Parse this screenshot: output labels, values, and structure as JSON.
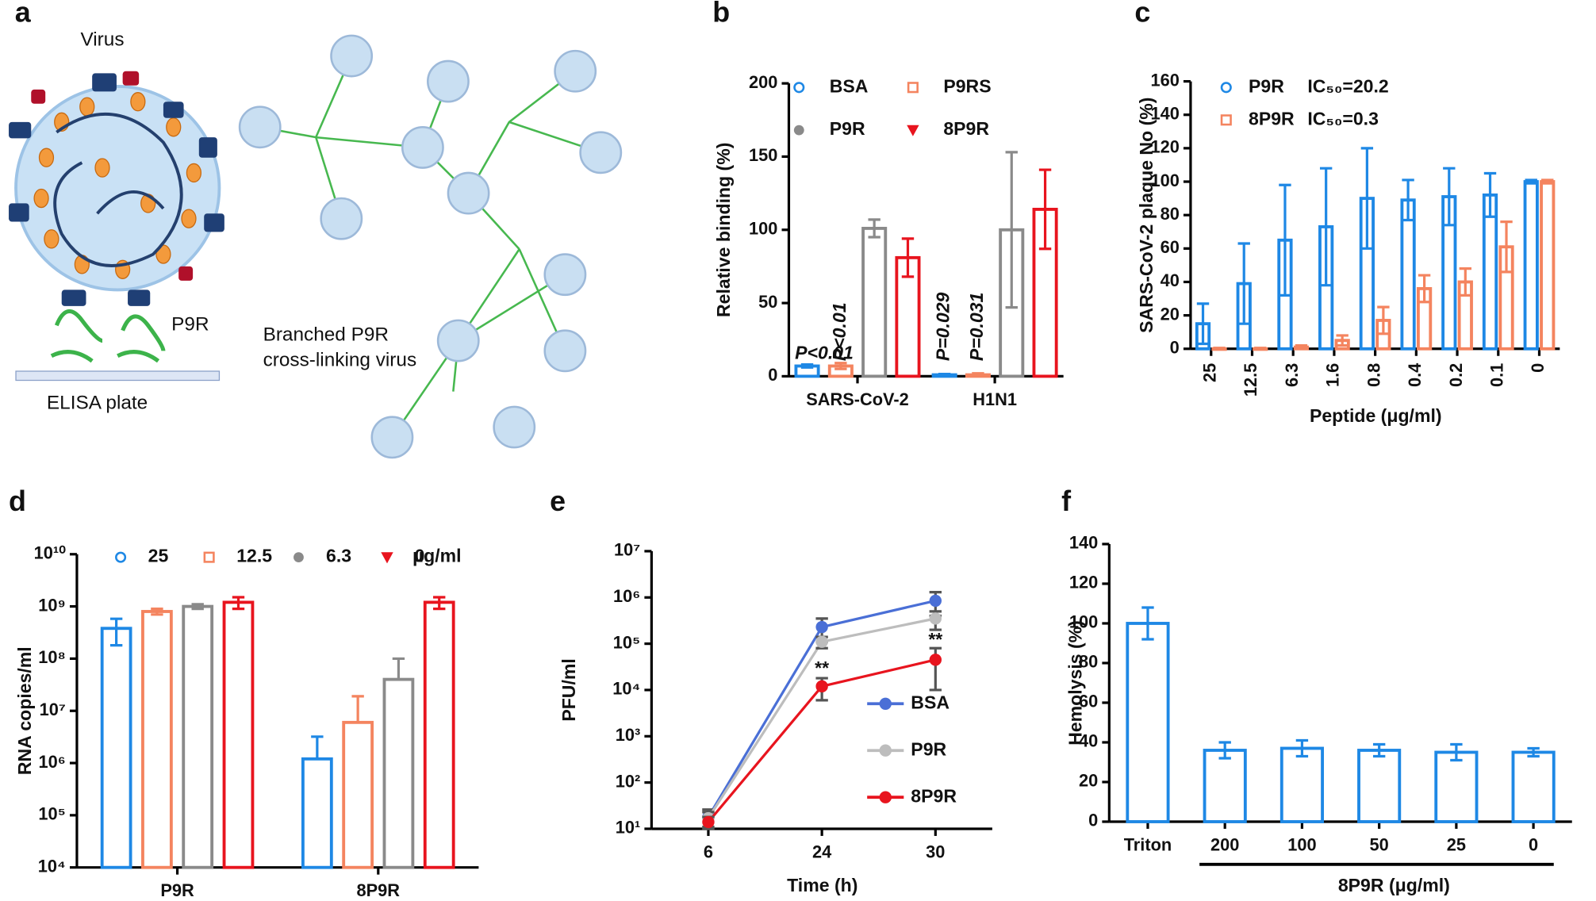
{
  "diagram": {
    "label": "a",
    "virus": "Virus",
    "peptide": "P9R",
    "plate": "ELISA plate",
    "branched": [
      "Branched P9R",
      "cross-linking virus"
    ]
  },
  "chart_data": [
    {
      "type": "bar",
      "label": "b",
      "ylabel": "Relative binding (%)",
      "categories": [
        "SARS-CoV-2",
        "H1N1"
      ],
      "series": [
        {
          "name": "BSA",
          "color": "#1e88e5",
          "marker": "circle-open",
          "values": [
            7,
            1
          ],
          "errors": [
            1,
            0.5
          ]
        },
        {
          "name": "P9RS",
          "color": "#f4845f",
          "marker": "square-open",
          "values": [
            7,
            1
          ],
          "errors": [
            2,
            1
          ]
        },
        {
          "name": "P9R",
          "color": "#8a8a8a",
          "marker": "circle",
          "values": [
            101,
            100
          ],
          "errors": [
            6,
            53
          ]
        },
        {
          "name": "8P9R",
          "color": "#e8141e",
          "marker": "triangle",
          "values": [
            81,
            114
          ],
          "errors": [
            13,
            27
          ]
        }
      ],
      "ylim": [
        0,
        200
      ],
      "yticks": [
        0,
        50,
        100,
        150,
        200
      ],
      "annotations": [
        "P<0.01",
        "P<0.01",
        "P=0.029",
        "P=0.031"
      ]
    },
    {
      "type": "bar",
      "label": "c",
      "ylabel": "SARS-CoV-2 plaque No (%)",
      "xlabel": "Peptide (μg/ml)",
      "categories": [
        "25",
        "12.5",
        "6.3",
        "1.6",
        "0.8",
        "0.4",
        "0.2",
        "0.1",
        "0"
      ],
      "series": [
        {
          "name": "P9R",
          "color": "#1e88e5",
          "marker": "circle-open",
          "values": [
            15,
            39,
            65,
            73,
            90,
            89,
            91,
            92,
            100
          ],
          "errors": [
            12,
            24,
            33,
            35,
            30,
            12,
            17,
            13,
            1
          ]
        },
        {
          "name": "8P9R",
          "color": "#f4845f",
          "marker": "square-open",
          "values": [
            0,
            0,
            1,
            5,
            17,
            36,
            40,
            61,
            100
          ],
          "errors": [
            0.5,
            0.5,
            1,
            3,
            8,
            8,
            8,
            15,
            1
          ]
        }
      ],
      "legend_notes": [
        "IC₅₀=20.2",
        "IC₅₀=0.3"
      ],
      "ylim": [
        0,
        160
      ],
      "yticks": [
        0,
        20,
        40,
        60,
        80,
        100,
        120,
        140,
        160
      ]
    },
    {
      "type": "bar",
      "label": "d",
      "ylabel": "RNA copies/ml",
      "categories": [
        "P9R",
        "8P9R"
      ],
      "log": true,
      "series": [
        {
          "name": "25",
          "color": "#1e88e5",
          "marker": "circle-open",
          "values": [
            380000000,
            1200000
          ],
          "errors": [
            200000000,
            2000000
          ]
        },
        {
          "name": "12.5",
          "color": "#f4845f",
          "marker": "square-open",
          "values": [
            800000000,
            6000000
          ],
          "errors": [
            100000000,
            13000000
          ]
        },
        {
          "name": "6.3",
          "color": "#8a8a8a",
          "marker": "circle",
          "values": [
            1000000000,
            40000000
          ],
          "errors": [
            100000000,
            60000000
          ]
        },
        {
          "name": "0",
          "color": "#e8141e",
          "marker": "triangle",
          "values": [
            1200000000,
            1200000000
          ],
          "errors": [
            300000000,
            300000000
          ]
        }
      ],
      "legend_unit": "μg/ml",
      "ylim": [
        10000,
        10000000000
      ],
      "yticks": [
        {
          "value": 10000,
          "label": "10⁴"
        },
        {
          "value": 100000,
          "label": "10⁵"
        },
        {
          "value": 1000000,
          "label": "10⁶"
        },
        {
          "value": 10000000,
          "label": "10⁷"
        },
        {
          "value": 100000000,
          "label": "10⁸"
        },
        {
          "value": 1000000000,
          "label": "10⁹"
        },
        {
          "value": 10000000000,
          "label": "10¹⁰"
        }
      ]
    },
    {
      "type": "line",
      "label": "e",
      "ylabel": "PFU/ml",
      "xlabel": "Time (h)",
      "categories": [
        "6",
        "24",
        "30"
      ],
      "log": true,
      "series": [
        {
          "name": "BSA",
          "color": "#4a6fd6",
          "values": [
            18,
            230000,
            850000
          ],
          "errors": [
            8,
            120000,
            450000
          ]
        },
        {
          "name": "P9R",
          "color": "#bdbdbd",
          "values": [
            17,
            110000,
            350000
          ],
          "errors": [
            6,
            30000,
            150000
          ]
        },
        {
          "name": "8P9R",
          "color": "#e8141e",
          "values": [
            14,
            12000,
            45000
          ],
          "errors": [
            4,
            6000,
            35000
          ]
        }
      ],
      "annotations": [
        "**",
        "**"
      ],
      "ylim": [
        10,
        10000000
      ],
      "yticks": [
        {
          "value": 10,
          "label": "10¹"
        },
        {
          "value": 100,
          "label": "10²"
        },
        {
          "value": 1000,
          "label": "10³"
        },
        {
          "value": 10000,
          "label": "10⁴"
        },
        {
          "value": 100000,
          "label": "10⁵"
        },
        {
          "value": 1000000,
          "label": "10⁶"
        },
        {
          "value": 10000000,
          "label": "10⁷"
        }
      ]
    },
    {
      "type": "bar",
      "label": "f",
      "ylabel": "Hemolysis (%)",
      "xlabel": "8P9R (μg/ml)",
      "categories": [
        "Triton",
        "200",
        "100",
        "50",
        "25",
        "0"
      ],
      "series": [
        {
          "name": "Hemolysis",
          "color": "#1e88e5",
          "values": [
            100,
            36,
            37,
            36,
            35,
            35
          ],
          "errors": [
            8,
            4,
            4,
            3,
            4,
            2
          ]
        }
      ],
      "ylim": [
        0,
        140
      ],
      "yticks": [
        0,
        20,
        40,
        60,
        80,
        100,
        120,
        140
      ]
    }
  ]
}
